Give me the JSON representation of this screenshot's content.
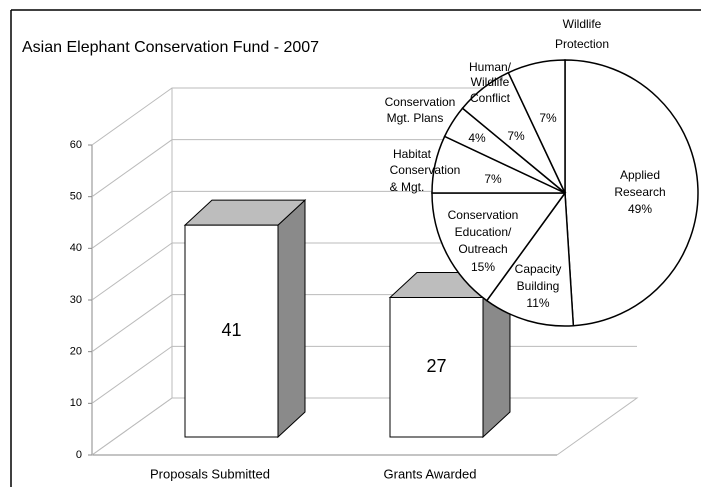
{
  "chart_data": [
    {
      "type": "bar3d",
      "title": "Asian Elephant Conservation Fund - 2007",
      "categories": [
        "Proposals Submitted",
        "Grants Awarded"
      ],
      "values": [
        41,
        27
      ],
      "ylim": [
        0,
        60
      ],
      "yticks": [
        0,
        10,
        20,
        30,
        40,
        50,
        60
      ],
      "grid": true,
      "color": "#ffffff",
      "top_color": "#bdbdbd",
      "side_color": "#8a8a8a"
    },
    {
      "type": "pie",
      "categories": [
        [
          "Applied",
          "Research"
        ],
        [
          "Capacity",
          "Building"
        ],
        [
          "Conservation",
          "Education/",
          "Outreach"
        ],
        [
          "Habitat",
          "Conservation",
          "& Mgt."
        ],
        [
          "Conservation",
          "Mgt. Plans"
        ],
        [
          "Human/",
          "Wildlife",
          "Conflict"
        ],
        [
          "Wildlife",
          "Protection"
        ]
      ],
      "values": [
        49,
        11,
        15,
        7,
        4,
        7,
        7
      ],
      "value_labels": [
        "49%",
        "11%",
        "15%",
        "7%",
        "4%",
        "7%",
        "7%"
      ],
      "color": "#ffffff"
    }
  ]
}
